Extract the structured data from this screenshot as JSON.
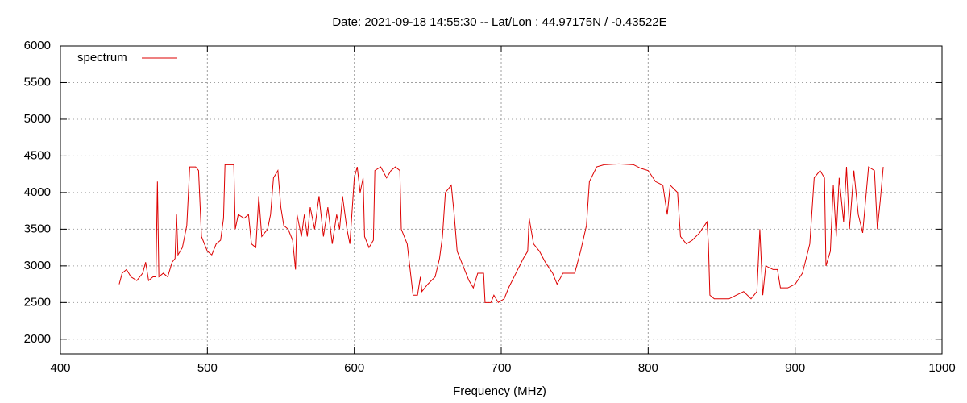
{
  "chart_data": {
    "type": "line",
    "title": "Date: 2021-09-18 14:55:30  --  Lat/Lon : 44.97175N / -0.43522E",
    "x_label": "Frequency (MHz)",
    "xlim": [
      400,
      1000
    ],
    "xticks": [
      400,
      500,
      600,
      700,
      800,
      900,
      1000
    ],
    "ylim": [
      1800,
      6000
    ],
    "yticks": [
      2000,
      2500,
      3000,
      3500,
      4000,
      4500,
      5000,
      5500,
      6000
    ],
    "grid": true,
    "legend": "top-left",
    "x": [
      440,
      442,
      445,
      448,
      452,
      456,
      458,
      460,
      463,
      465,
      466,
      467,
      470,
      473,
      476,
      478,
      479,
      480,
      483,
      486,
      488,
      492,
      494,
      496,
      500,
      503,
      506,
      509,
      511,
      512,
      518,
      519,
      521,
      525,
      528,
      530,
      533,
      535,
      537,
      541,
      543,
      545,
      548,
      550,
      552,
      555,
      558,
      560,
      561,
      564,
      566,
      568,
      570,
      573,
      576,
      579,
      582,
      585,
      588,
      590,
      592,
      595,
      597,
      600,
      602,
      604,
      606,
      607,
      610,
      613,
      614,
      618,
      622,
      625,
      628,
      631,
      632,
      636,
      638,
      640,
      643,
      645,
      646,
      650,
      655,
      658,
      660,
      662,
      666,
      668,
      670,
      674,
      678,
      681,
      684,
      688,
      689,
      693,
      695,
      698,
      702,
      705,
      710,
      715,
      718,
      719,
      722,
      726,
      730,
      735,
      738,
      742,
      746,
      750,
      754,
      758,
      760,
      765,
      770,
      780,
      790,
      795,
      800,
      805,
      810,
      813,
      815,
      820,
      822,
      826,
      830,
      835,
      840,
      841,
      842,
      845,
      850,
      855,
      860,
      865,
      870,
      874,
      876,
      878,
      880,
      885,
      888,
      890,
      895,
      900,
      905,
      910,
      913,
      917,
      920,
      921,
      924,
      926,
      928,
      930,
      933,
      935,
      937,
      940,
      943,
      946,
      950,
      954,
      956,
      958,
      960
    ],
    "series": [
      {
        "name": "spectrum",
        "color": "#dd0000",
        "values": [
          2750,
          2900,
          2950,
          2850,
          2800,
          2900,
          3050,
          2800,
          2850,
          2850,
          4150,
          2850,
          2900,
          2850,
          3050,
          3100,
          3700,
          3150,
          3250,
          3550,
          4350,
          4350,
          4300,
          3400,
          3200,
          3150,
          3300,
          3350,
          3650,
          4380,
          4380,
          3500,
          3700,
          3650,
          3700,
          3300,
          3250,
          3950,
          3400,
          3500,
          3700,
          4200,
          4300,
          3800,
          3550,
          3500,
          3350,
          2950,
          3700,
          3400,
          3700,
          3400,
          3800,
          3500,
          3950,
          3400,
          3800,
          3300,
          3700,
          3500,
          3950,
          3500,
          3300,
          4200,
          4350,
          4000,
          4200,
          3400,
          3250,
          3350,
          4300,
          4350,
          4200,
          4300,
          4350,
          4300,
          3500,
          3300,
          2950,
          2600,
          2600,
          2850,
          2650,
          2750,
          2850,
          3100,
          3400,
          4000,
          4100,
          3700,
          3200,
          3000,
          2800,
          2700,
          2900,
          2900,
          2500,
          2500,
          2600,
          2500,
          2550,
          2700,
          2900,
          3100,
          3200,
          3650,
          3300,
          3200,
          3050,
          2900,
          2750,
          2900,
          2900,
          2900,
          3200,
          3550,
          4150,
          4350,
          4380,
          4390,
          4380,
          4330,
          4300,
          4150,
          4100,
          3700,
          4100,
          4000,
          3400,
          3300,
          3350,
          3450,
          3600,
          3300,
          2600,
          2550,
          2550,
          2550,
          2600,
          2650,
          2550,
          2650,
          3500,
          2600,
          3000,
          2950,
          2950,
          2700,
          2700,
          2750,
          2900,
          3300,
          4200,
          4300,
          4200,
          3000,
          3200,
          4100,
          3400,
          4200,
          3600,
          4350,
          3500,
          4300,
          3700,
          3450,
          4350,
          4300,
          3500,
          3900,
          4350
        ]
      }
    ]
  }
}
